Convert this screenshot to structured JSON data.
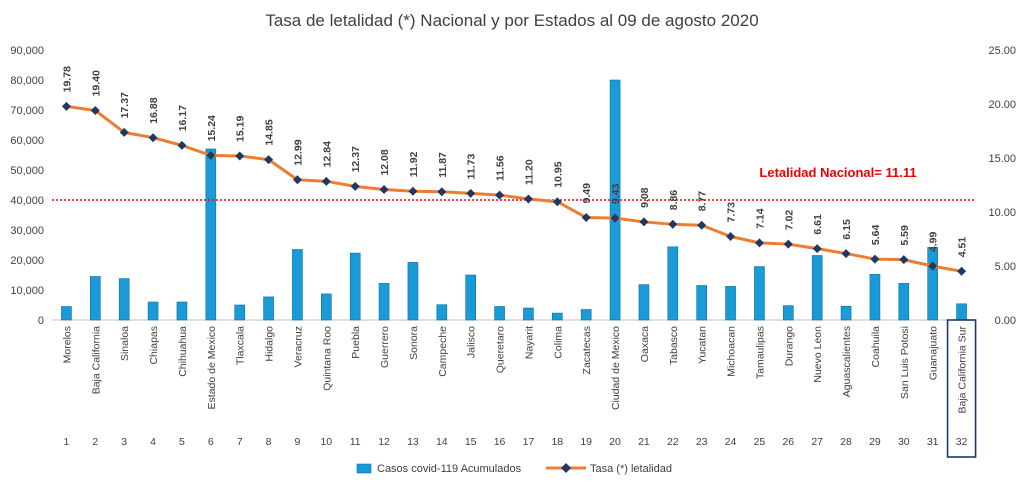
{
  "chart_data": {
    "type": "bar",
    "title": "Tasa de letalidad (*) Nacional y por Estados al 09 de agosto 2020",
    "numbers": [
      "1",
      "2",
      "3",
      "4",
      "5",
      "6",
      "7",
      "8",
      "9",
      "10",
      "11",
      "12",
      "13",
      "14",
      "15",
      "16",
      "17",
      "18",
      "19",
      "20",
      "21",
      "22",
      "23",
      "24",
      "25",
      "26",
      "27",
      "28",
      "29",
      "30",
      "31",
      "32"
    ],
    "categories": [
      "Morelos",
      "Baja California",
      "Sinaloa",
      "Chiapas",
      "Chihuahua",
      "Estado de Mexico",
      "Tlaxcala",
      "Hidalgo",
      "Veracruz",
      "Quintana Roo",
      "Puebla",
      "Guerrero",
      "Sonora",
      "Campeche",
      "Jalisco",
      "Queretaro",
      "Nayarit",
      "Colima",
      "Zacatecas",
      "Ciudad de Mexico",
      "Oaxaca",
      "Tabasco",
      "Yucatan",
      "Michoacan",
      "Tamaulipas",
      "Durango",
      "Nuevo Leon",
      "Aguascalientes",
      "Coahuila",
      "San Luis Potosi",
      "Guanajuato",
      "Baja California Sur"
    ],
    "highlighted_category": "Baja California Sur",
    "series": [
      {
        "name": "Casos covid-119 Acumulados",
        "type": "bar",
        "axis": "left",
        "color": "#1a9ad6",
        "values": [
          4500,
          14500,
          13800,
          6000,
          6000,
          57000,
          5000,
          7700,
          23500,
          8700,
          22300,
          12200,
          19200,
          5100,
          15000,
          4500,
          4000,
          2300,
          3500,
          80000,
          11800,
          24400,
          11500,
          11200,
          17800,
          4800,
          21500,
          4600,
          15200,
          12200,
          24200,
          5400
        ]
      },
      {
        "name": "Tasa (*) letalidad",
        "type": "line",
        "axis": "right",
        "color": "#ed7d31",
        "marker_color": "#1f3864",
        "values": [
          19.78,
          19.4,
          17.37,
          16.88,
          16.17,
          15.24,
          15.19,
          14.85,
          12.99,
          12.84,
          12.37,
          12.08,
          11.92,
          11.87,
          11.73,
          11.56,
          11.2,
          10.95,
          9.49,
          9.43,
          9.08,
          8.86,
          8.77,
          7.73,
          7.14,
          7.02,
          6.61,
          6.15,
          5.64,
          5.59,
          4.99,
          4.51
        ],
        "labels": [
          "19.78",
          "19.40",
          "17.37",
          "16.88",
          "16.17",
          "15.24",
          "15.19",
          "14.85",
          "12.99",
          "12.84",
          "12.37",
          "12.08",
          "11.92",
          "11.87",
          "11.73",
          "11.56",
          "11.20",
          "10.95",
          "9.49",
          "9.43",
          "9.08",
          "8.86",
          "8.77",
          "7.73",
          "7.14",
          "7.02",
          "6.61",
          "6.15",
          "5.64",
          "5.59",
          "4.99",
          "4.51"
        ]
      }
    ],
    "reference_line": {
      "label": "Letalidad Nacional= 11.11",
      "value": 11.11,
      "color": "#ff0000"
    },
    "y_left": {
      "ylim": [
        0,
        90000
      ],
      "ticks": [
        "0",
        "10,000",
        "20,000",
        "30,000",
        "40,000",
        "50,000",
        "60,000",
        "70,000",
        "80,000",
        "90,000"
      ]
    },
    "y_right": {
      "ylim": [
        0,
        25
      ],
      "ticks": [
        "0.00",
        "5.00",
        "10.00",
        "15.00",
        "20.00",
        "25.00"
      ]
    },
    "grid": false,
    "legend_position": "bottom"
  }
}
